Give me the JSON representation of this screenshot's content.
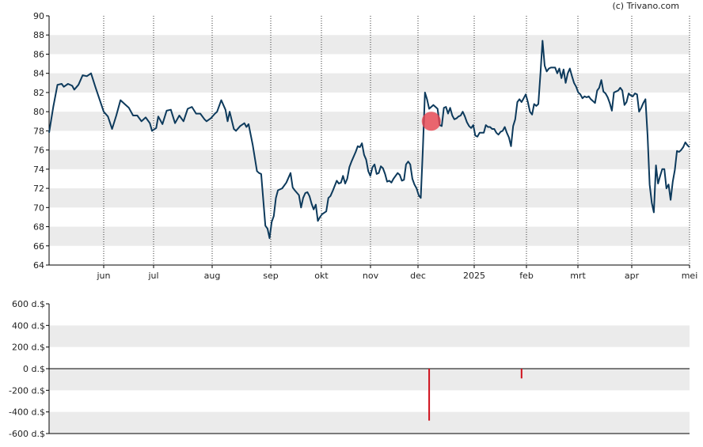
{
  "copyright": "(c) Trivano.com",
  "colors": {
    "price_line": "#0d3a5c",
    "band": "#ebebeb",
    "grid": "#333333",
    "marker": "#e8434f",
    "insider_bar": "#d0101c",
    "axis": "#000000"
  },
  "chart_data": [
    {
      "type": "line",
      "title": "",
      "ylim": [
        64,
        90
      ],
      "yticks": [
        "64",
        "66",
        "68",
        "70",
        "72",
        "74",
        "76",
        "78",
        "80",
        "82",
        "84",
        "86",
        "88",
        "90"
      ],
      "xticks": [
        "jun",
        "jul",
        "aug",
        "sep",
        "okt",
        "nov",
        "dec",
        "2025",
        "feb",
        "mrt",
        "apr",
        "mei"
      ],
      "grid": "vertical dotted at month starts, alternating grey bands",
      "series": [
        {
          "points": [
            [
              0,
              77.8
            ],
            [
              2,
              80.5
            ],
            [
              4,
              82.8
            ],
            [
              6,
              82.9
            ],
            [
              7,
              82.6
            ],
            [
              9,
              82.9
            ],
            [
              11,
              82.7
            ],
            [
              12,
              82.3
            ],
            [
              14,
              82.8
            ],
            [
              16,
              83.8
            ],
            [
              18,
              83.7
            ],
            [
              20,
              84.0
            ],
            [
              22,
              82.6
            ],
            [
              24,
              81.3
            ],
            [
              26,
              80.0
            ],
            [
              28,
              79.5
            ],
            [
              30,
              78.2
            ],
            [
              32,
              79.6
            ],
            [
              34,
              81.2
            ],
            [
              36,
              80.8
            ],
            [
              38,
              80.4
            ],
            [
              40,
              79.6
            ],
            [
              42,
              79.6
            ],
            [
              44,
              79.0
            ],
            [
              46,
              79.4
            ],
            [
              48,
              78.8
            ],
            [
              49,
              78.0
            ],
            [
              51,
              78.3
            ],
            [
              52,
              79.5
            ],
            [
              54,
              78.7
            ],
            [
              56,
              80.1
            ],
            [
              58,
              80.2
            ],
            [
              60,
              78.8
            ],
            [
              62,
              79.6
            ],
            [
              64,
              79.0
            ],
            [
              66,
              80.3
            ],
            [
              68,
              80.5
            ],
            [
              70,
              79.8
            ],
            [
              72,
              79.8
            ],
            [
              74,
              79.2
            ],
            [
              75,
              79.0
            ],
            [
              77,
              79.3
            ],
            [
              79,
              79.8
            ],
            [
              80,
              80.0
            ],
            [
              82,
              81.2
            ],
            [
              84,
              80.2
            ],
            [
              85,
              79.0
            ],
            [
              86,
              80.0
            ],
            [
              88,
              78.2
            ],
            [
              89,
              78.0
            ],
            [
              91,
              78.5
            ],
            [
              93,
              78.8
            ],
            [
              94,
              78.4
            ],
            [
              95,
              78.7
            ],
            [
              97,
              76.5
            ],
            [
              99,
              73.8
            ],
            [
              100,
              73.6
            ],
            [
              101,
              73.5
            ],
            [
              103,
              68.1
            ],
            [
              104,
              67.8
            ],
            [
              105,
              66.8
            ],
            [
              106,
              68.5
            ],
            [
              107,
              69.1
            ],
            [
              108,
              71.0
            ],
            [
              109,
              71.8
            ],
            [
              111,
              72.0
            ],
            [
              113,
              72.6
            ],
            [
              115,
              73.6
            ],
            [
              116,
              72.1
            ],
            [
              117,
              71.8
            ],
            [
              119,
              71.3
            ],
            [
              120,
              70.0
            ],
            [
              121,
              71.0
            ],
            [
              122,
              71.5
            ],
            [
              123,
              71.6
            ],
            [
              124,
              71.2
            ],
            [
              125,
              70.4
            ],
            [
              126,
              69.8
            ],
            [
              127,
              70.3
            ],
            [
              128,
              68.6
            ],
            [
              129,
              69.0
            ],
            [
              130,
              69.3
            ],
            [
              132,
              69.6
            ],
            [
              133,
              71.0
            ],
            [
              134,
              71.2
            ],
            [
              135,
              71.7
            ],
            [
              137,
              72.8
            ],
            [
              138,
              72.5
            ],
            [
              139,
              72.6
            ],
            [
              140,
              73.3
            ],
            [
              141,
              72.5
            ],
            [
              142,
              73.0
            ],
            [
              143,
              74.2
            ],
            [
              144,
              74.8
            ],
            [
              146,
              75.8
            ],
            [
              147,
              76.4
            ],
            [
              148,
              76.3
            ],
            [
              149,
              76.7
            ],
            [
              150,
              75.5
            ],
            [
              151,
              75.0
            ],
            [
              152,
              73.8
            ],
            [
              153,
              73.3
            ],
            [
              154,
              74.2
            ],
            [
              155,
              74.5
            ],
            [
              156,
              73.5
            ],
            [
              157,
              73.6
            ],
            [
              158,
              74.3
            ],
            [
              159,
              74.1
            ],
            [
              160,
              73.5
            ],
            [
              161,
              72.7
            ],
            [
              162,
              72.8
            ],
            [
              163,
              72.6
            ],
            [
              164,
              73.0
            ],
            [
              166,
              73.6
            ],
            [
              167,
              73.4
            ],
            [
              168,
              72.8
            ],
            [
              169,
              72.9
            ],
            [
              170,
              74.5
            ],
            [
              171,
              74.8
            ],
            [
              172,
              74.5
            ],
            [
              173,
              73.0
            ],
            [
              174,
              72.4
            ],
            [
              175,
              72.0
            ],
            [
              176,
              71.3
            ],
            [
              177,
              71.0
            ],
            [
              178,
              76.0
            ],
            [
              179,
              82.0
            ],
            [
              180,
              81.3
            ],
            [
              181,
              80.3
            ],
            [
              182,
              80.5
            ],
            [
              183,
              80.7
            ],
            [
              184,
              80.5
            ],
            [
              185,
              80.3
            ],
            [
              186,
              78.6
            ],
            [
              187,
              78.5
            ],
            [
              188,
              80.4
            ],
            [
              189,
              80.5
            ],
            [
              190,
              79.8
            ],
            [
              191,
              80.4
            ],
            [
              192,
              79.6
            ],
            [
              193,
              79.2
            ],
            [
              194,
              79.3
            ],
            [
              195,
              79.5
            ],
            [
              196,
              79.6
            ],
            [
              197,
              80.0
            ],
            [
              198,
              79.5
            ],
            [
              199,
              78.9
            ],
            [
              200,
              78.5
            ],
            [
              201,
              78.3
            ],
            [
              202,
              78.6
            ],
            [
              203,
              77.5
            ],
            [
              204,
              77.4
            ],
            [
              205,
              77.8
            ],
            [
              206,
              77.8
            ],
            [
              207,
              77.8
            ],
            [
              208,
              78.6
            ],
            [
              209,
              78.4
            ],
            [
              210,
              78.4
            ],
            [
              211,
              78.2
            ],
            [
              212,
              78.2
            ],
            [
              213,
              77.8
            ],
            [
              214,
              77.6
            ],
            [
              215,
              77.9
            ],
            [
              216,
              78.0
            ],
            [
              217,
              78.4
            ],
            [
              218,
              77.8
            ],
            [
              219,
              77.3
            ],
            [
              220,
              76.4
            ],
            [
              221,
              78.5
            ],
            [
              222,
              79.2
            ],
            [
              223,
              81.0
            ],
            [
              224,
              81.3
            ],
            [
              225,
              81.0
            ],
            [
              226,
              81.4
            ],
            [
              227,
              81.8
            ],
            [
              228,
              81.0
            ],
            [
              229,
              80.0
            ],
            [
              230,
              79.7
            ],
            [
              231,
              80.8
            ],
            [
              232,
              80.6
            ],
            [
              233,
              80.8
            ],
            [
              234,
              84.0
            ],
            [
              235,
              87.4
            ],
            [
              236,
              84.8
            ],
            [
              237,
              84.2
            ],
            [
              238,
              84.5
            ],
            [
              239,
              84.6
            ],
            [
              240,
              84.6
            ],
            [
              241,
              84.6
            ],
            [
              242,
              84.0
            ],
            [
              243,
              84.5
            ],
            [
              244,
              83.5
            ],
            [
              245,
              84.4
            ],
            [
              246,
              83.0
            ],
            [
              247,
              84.0
            ],
            [
              248,
              84.5
            ],
            [
              249,
              83.7
            ],
            [
              250,
              83.0
            ],
            [
              251,
              82.6
            ],
            [
              252,
              82.0
            ],
            [
              253,
              81.8
            ],
            [
              254,
              81.4
            ],
            [
              255,
              81.6
            ],
            [
              256,
              81.5
            ],
            [
              257,
              81.6
            ],
            [
              258,
              81.3
            ],
            [
              259,
              81.1
            ],
            [
              260,
              80.9
            ],
            [
              261,
              82.2
            ],
            [
              262,
              82.5
            ],
            [
              263,
              83.3
            ],
            [
              264,
              82.1
            ],
            [
              265,
              81.9
            ],
            [
              266,
              81.5
            ],
            [
              267,
              80.9
            ],
            [
              268,
              80.1
            ],
            [
              269,
              82.0
            ],
            [
              270,
              82.1
            ],
            [
              271,
              82.2
            ],
            [
              272,
              82.5
            ],
            [
              273,
              82.2
            ],
            [
              274,
              80.7
            ],
            [
              275,
              81.0
            ],
            [
              276,
              81.9
            ],
            [
              277,
              81.7
            ],
            [
              278,
              81.6
            ],
            [
              279,
              81.9
            ],
            [
              280,
              81.8
            ],
            [
              281,
              80.0
            ],
            [
              282,
              80.4
            ],
            [
              283,
              80.9
            ],
            [
              284,
              81.3
            ],
            [
              285,
              77.5
            ],
            [
              286,
              72.4
            ],
            [
              287,
              70.5
            ],
            [
              288,
              69.5
            ],
            [
              289,
              74.4
            ],
            [
              290,
              72.5
            ],
            [
              291,
              73.3
            ],
            [
              292,
              74.0
            ],
            [
              293,
              74.0
            ],
            [
              294,
              72.0
            ],
            [
              295,
              72.4
            ],
            [
              296,
              70.8
            ],
            [
              297,
              72.7
            ],
            [
              298,
              73.9
            ],
            [
              299,
              75.9
            ],
            [
              300,
              75.8
            ],
            [
              301,
              76.0
            ],
            [
              302,
              76.3
            ],
            [
              303,
              76.8
            ],
            [
              304,
              76.5
            ],
            [
              305,
              76.3
            ]
          ],
          "marker": {
            "x": 182,
            "y": 79.0
          }
        }
      ]
    },
    {
      "type": "bar",
      "title": "",
      "ylim": [
        -600,
        600
      ],
      "yticks": [
        "600 d.$",
        "400 d.$",
        "200 d.$",
        "0 d.$",
        "-200 d.$",
        "-400 d.$",
        "-600 d.$"
      ],
      "series": [
        {
          "points": [
            [
              181,
              -480
            ],
            [
              225,
              -90
            ]
          ]
        }
      ]
    }
  ]
}
